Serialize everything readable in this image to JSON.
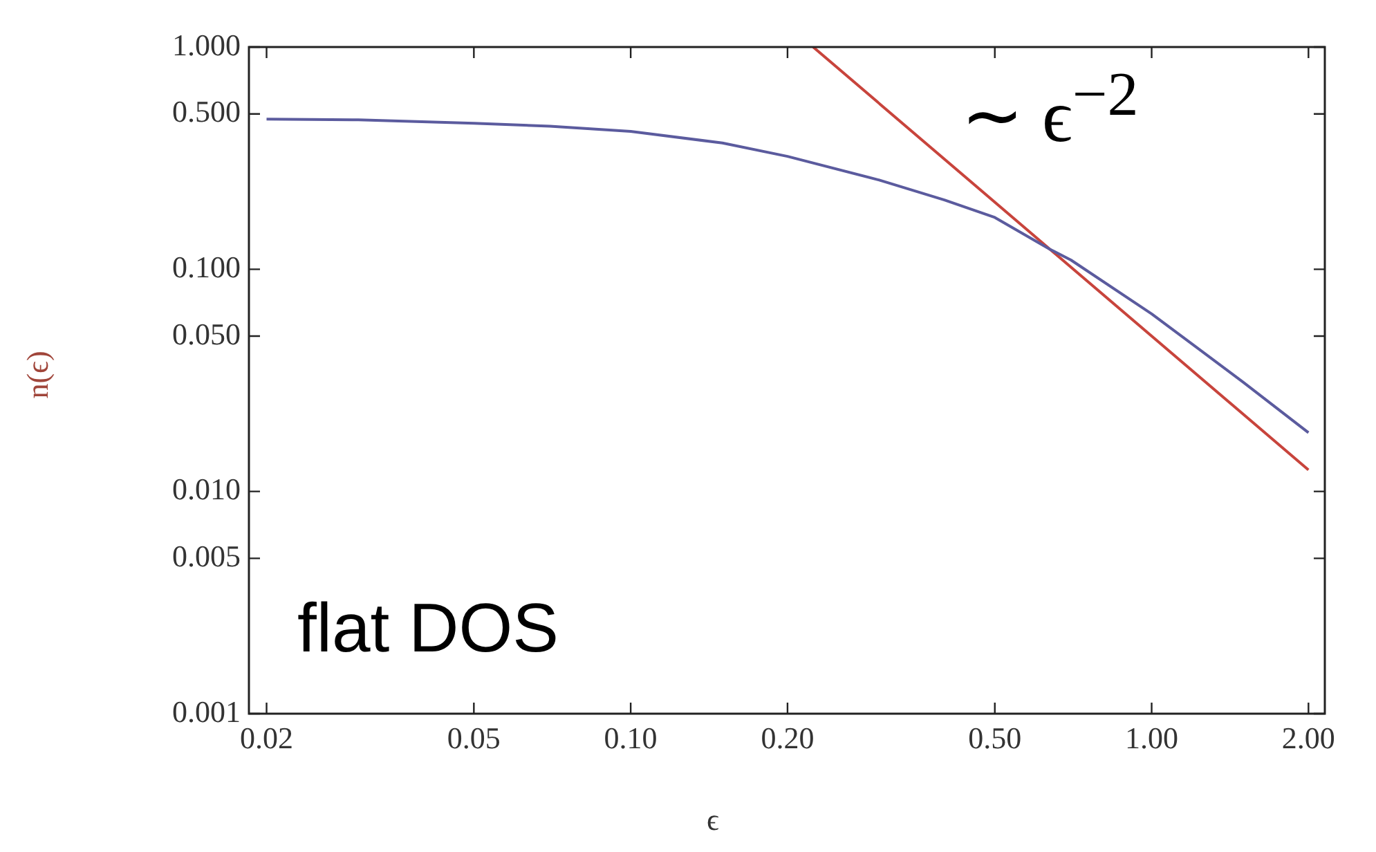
{
  "chart_data": {
    "type": "line",
    "xlabel": "ϵ",
    "ylabel": "n(ϵ)",
    "log": "xy",
    "grid": false,
    "legend": false,
    "marker": "none",
    "line_style": "solid",
    "xlim": [
      0.0185,
      2.15
    ],
    "ylim": [
      0.001,
      1
    ],
    "xticks": [
      0.02,
      0.05,
      {
        "value": 0.1,
        "label": "0.10"
      },
      {
        "value": 0.2,
        "label": "0.20"
      },
      {
        "value": 0.5,
        "label": "0.50"
      },
      {
        "value": 1,
        "label": "1.00"
      },
      {
        "value": 2,
        "label": "2.00"
      }
    ],
    "yticks": [
      0.001,
      0.005,
      {
        "value": 0.01,
        "label": "0.010"
      },
      {
        "value": 0.05,
        "label": "0.050"
      },
      {
        "value": 0.1,
        "label": "0.100"
      },
      {
        "value": 0.5,
        "label": "0.500"
      },
      {
        "value": 1,
        "label": "1.000"
      }
    ],
    "series": [
      {
        "color": "#5b5b9e",
        "x": [
          0.02,
          0.03,
          0.05,
          0.07,
          0.1,
          0.15,
          0.2,
          0.3,
          0.4,
          0.5,
          0.638,
          0.7,
          1.0,
          1.5,
          2.0
        ],
        "values": [
          0.474,
          0.47,
          0.454,
          0.44,
          0.417,
          0.37,
          0.322,
          0.252,
          0.205,
          0.171,
          0.123,
          0.11,
          0.063,
          0.031,
          0.0184
        ]
      },
      {
        "color": "#c8443c",
        "x": [
          0.224,
          0.638,
          2.0
        ],
        "values": [
          1.0,
          0.123,
          0.0125
        ]
      }
    ],
    "annotations": [
      "∼ ϵ$^{−2}$",
      "flat DOS"
    ]
  }
}
